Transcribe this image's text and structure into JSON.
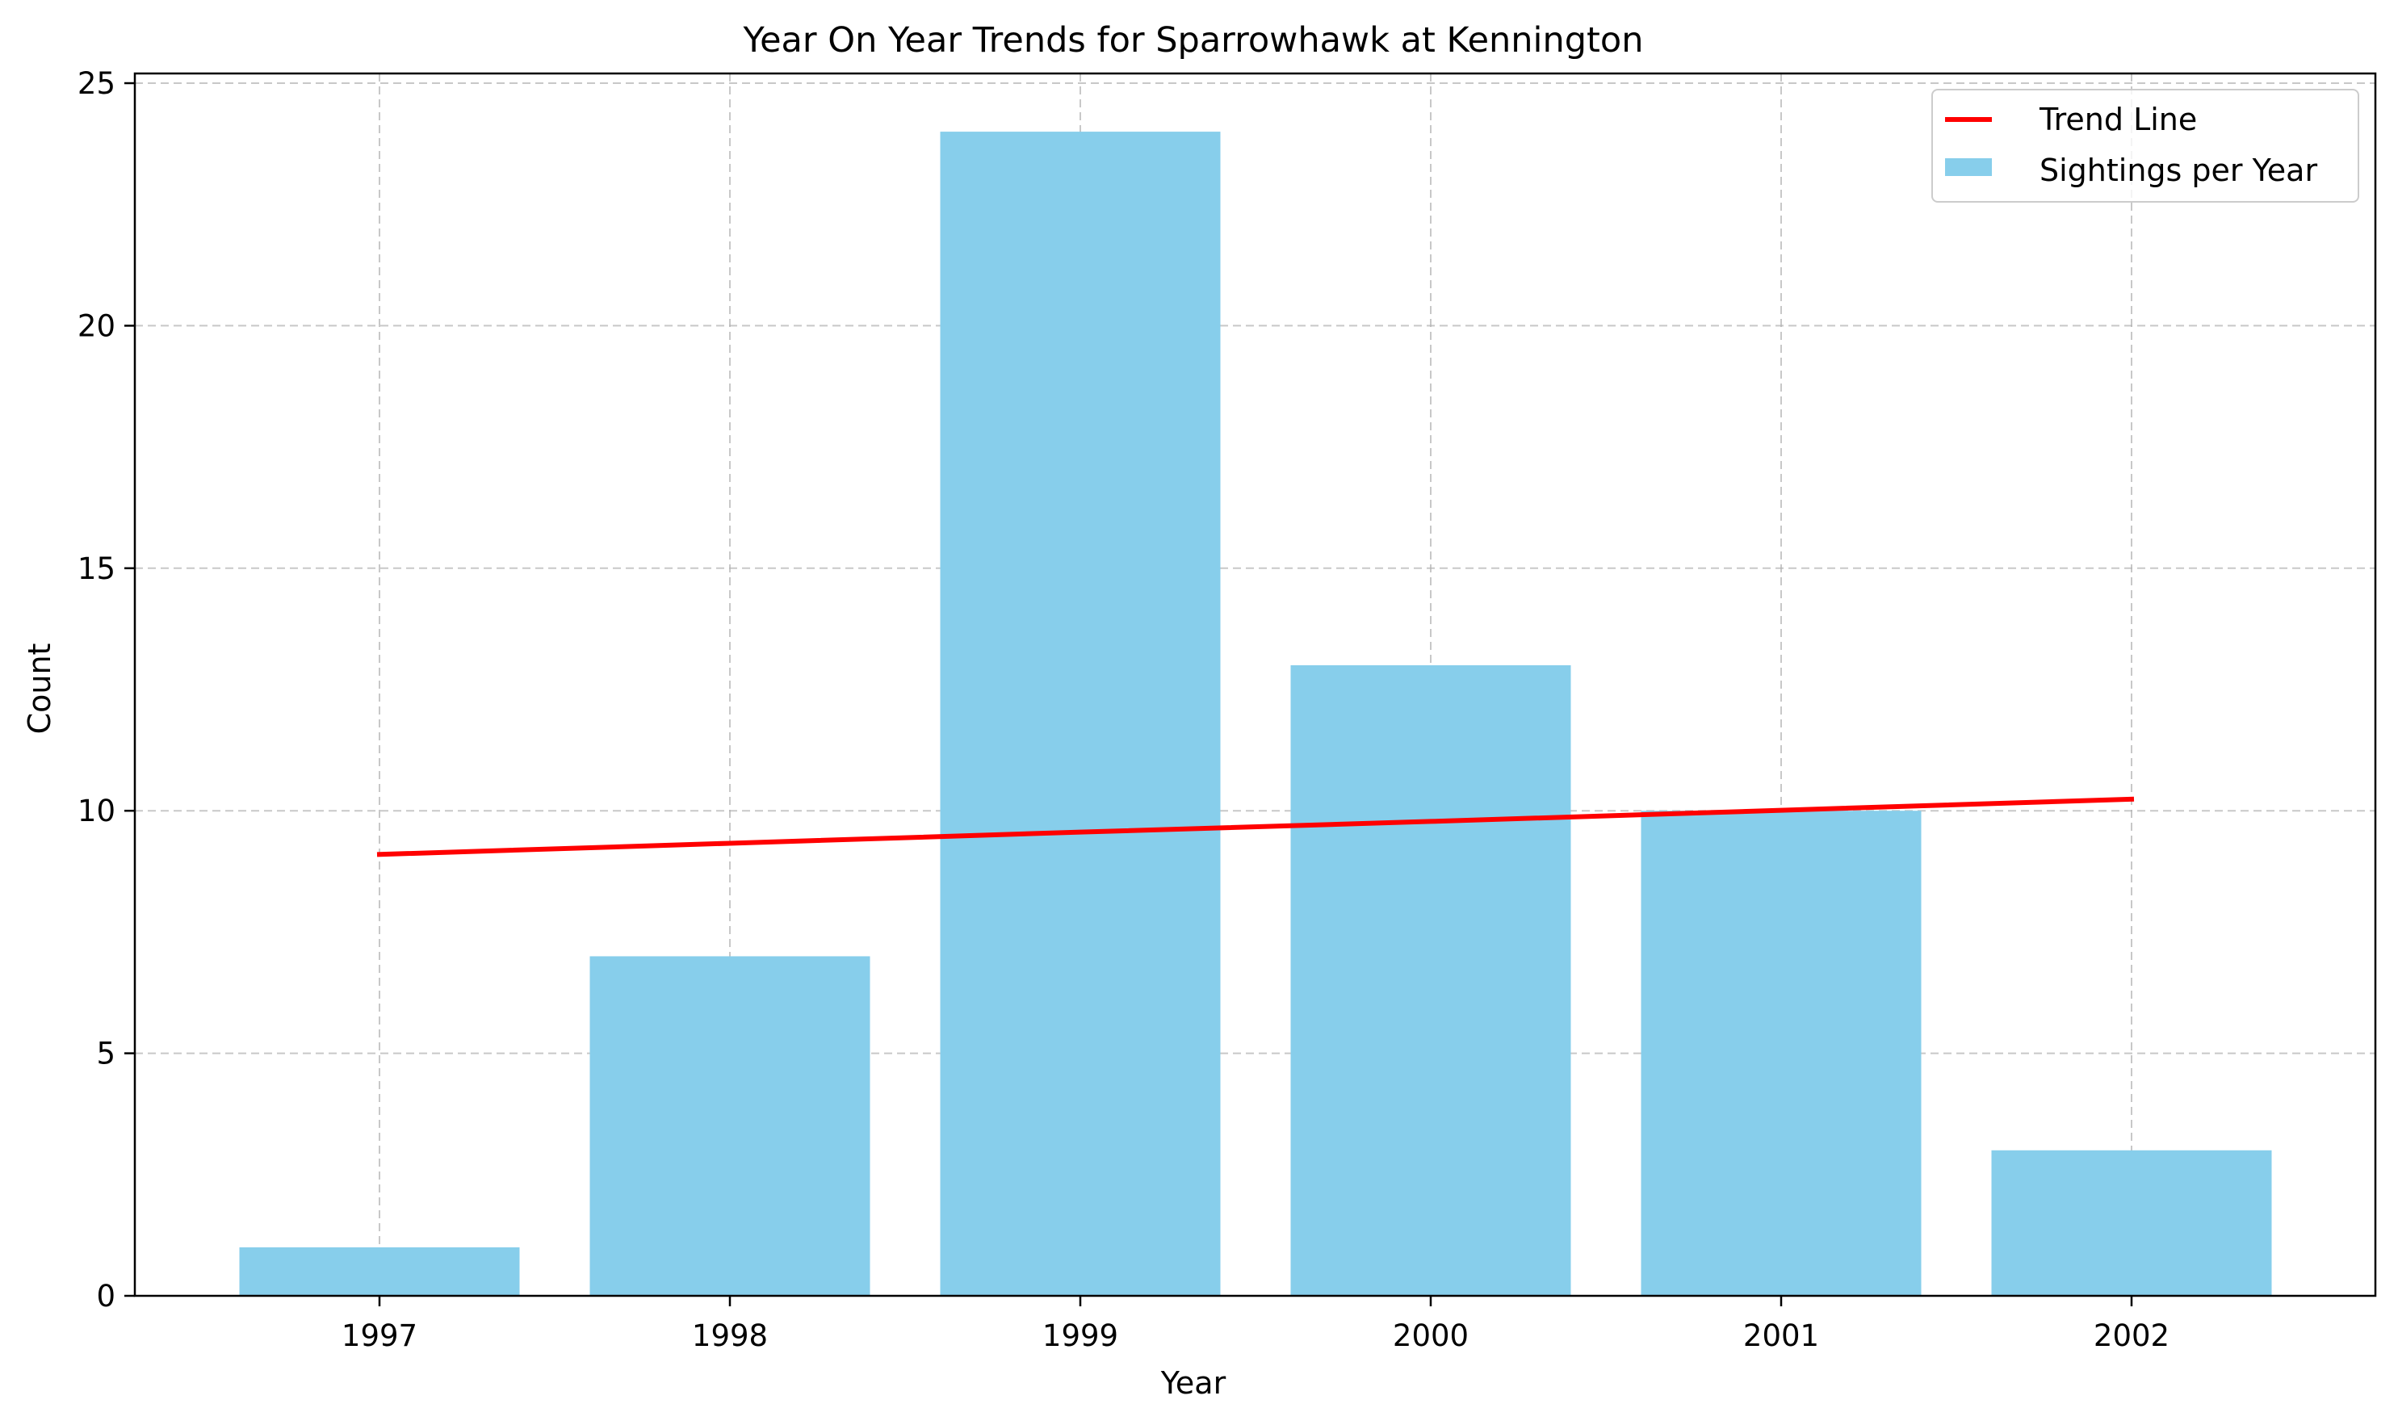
{
  "chart_data": {
    "type": "bar",
    "title": "Year On Year Trends for Sparrowhawk at Kennington",
    "xlabel": "Year",
    "ylabel": "Count",
    "categories": [
      "1997",
      "1998",
      "1999",
      "2000",
      "2001",
      "2002"
    ],
    "series": [
      {
        "name": "Sightings per Year",
        "type": "bar",
        "color": "#87CEEB",
        "values": [
          1,
          7,
          24,
          13,
          10,
          3
        ]
      },
      {
        "name": "Trend Line",
        "type": "line",
        "color": "#FF0000",
        "values": [
          9.1,
          9.33,
          9.56,
          9.78,
          10.01,
          10.24
        ]
      }
    ],
    "ylim": [
      0,
      25.2
    ],
    "yticks": [
      0,
      5,
      10,
      15,
      20,
      25
    ],
    "grid": true,
    "legend": {
      "position": "top-right",
      "entries": [
        "Trend Line",
        "Sightings per Year"
      ]
    }
  }
}
